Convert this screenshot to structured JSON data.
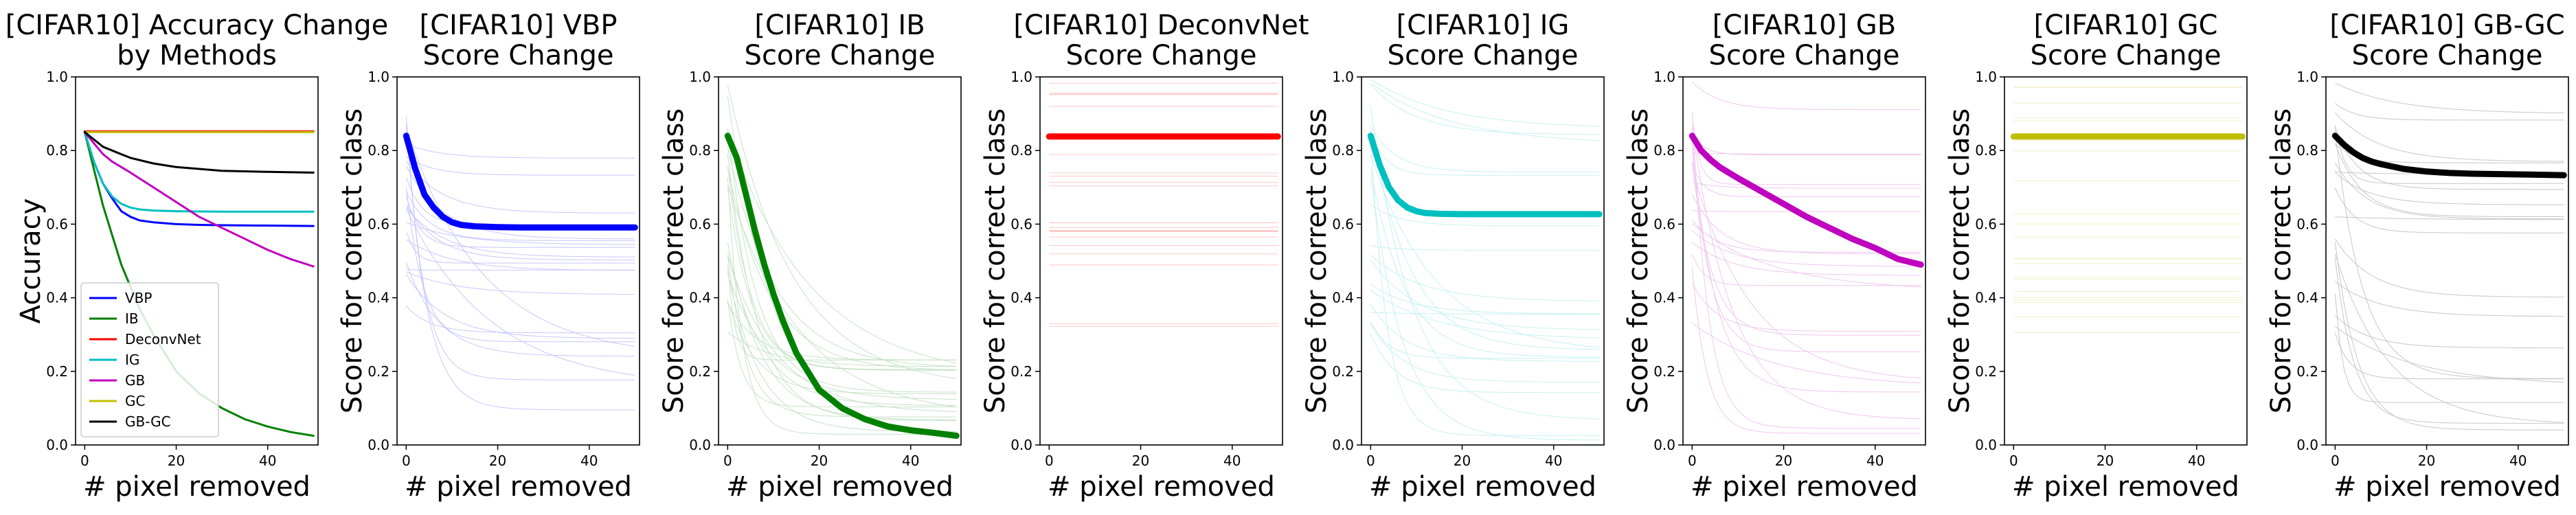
{
  "figure": {
    "background": "#ffffff"
  },
  "chart_data": [
    {
      "type": "line",
      "title": "[CIFAR10] Accuracy Change\nby Methods",
      "xlabel": "# pixel removed",
      "ylabel": "Accuracy",
      "xlim": [
        -2,
        51
      ],
      "ylim": [
        0,
        1.0
      ],
      "xticks": [
        0,
        20,
        40
      ],
      "yticks": [
        0.0,
        0.2,
        0.4,
        0.6,
        0.8,
        1.0
      ],
      "legend": {
        "placement": "lower-left"
      },
      "series": [
        {
          "name": "VBP",
          "color": "#0000ff",
          "x": [
            0,
            2,
            4,
            6,
            8,
            10,
            12,
            15,
            20,
            25,
            30,
            40,
            50
          ],
          "y": [
            0.85,
            0.77,
            0.71,
            0.67,
            0.635,
            0.62,
            0.61,
            0.605,
            0.6,
            0.598,
            0.597,
            0.596,
            0.595
          ]
        },
        {
          "name": "IB",
          "color": "#008000",
          "x": [
            0,
            2,
            4,
            6,
            8,
            10,
            12,
            15,
            20,
            25,
            30,
            35,
            40,
            45,
            50
          ],
          "y": [
            0.85,
            0.75,
            0.65,
            0.57,
            0.49,
            0.43,
            0.37,
            0.3,
            0.2,
            0.14,
            0.1,
            0.07,
            0.05,
            0.035,
            0.025
          ]
        },
        {
          "name": "DeconvNet",
          "color": "#ff0000",
          "x": [
            0,
            50
          ],
          "y": [
            0.852,
            0.852
          ]
        },
        {
          "name": "IG",
          "color": "#00bfbf",
          "x": [
            0,
            2,
            4,
            6,
            8,
            10,
            12,
            15,
            20,
            30,
            40,
            50
          ],
          "y": [
            0.85,
            0.77,
            0.71,
            0.675,
            0.655,
            0.645,
            0.64,
            0.637,
            0.635,
            0.634,
            0.634,
            0.634
          ]
        },
        {
          "name": "GB",
          "color": "#bf00bf",
          "x": [
            0,
            2,
            4,
            6,
            8,
            10,
            15,
            20,
            25,
            30,
            35,
            40,
            45,
            50
          ],
          "y": [
            0.85,
            0.82,
            0.79,
            0.77,
            0.755,
            0.74,
            0.7,
            0.66,
            0.62,
            0.59,
            0.56,
            0.53,
            0.505,
            0.485
          ]
        },
        {
          "name": "GC",
          "color": "#bfbf00",
          "x": [
            0,
            50
          ],
          "y": [
            0.85,
            0.85
          ]
        },
        {
          "name": "GB-GC",
          "color": "#000000",
          "x": [
            0,
            2,
            4,
            6,
            8,
            10,
            15,
            20,
            25,
            30,
            40,
            50
          ],
          "y": [
            0.85,
            0.83,
            0.81,
            0.8,
            0.79,
            0.78,
            0.765,
            0.755,
            0.75,
            0.745,
            0.742,
            0.74
          ]
        }
      ]
    },
    {
      "type": "line",
      "title": "[CIFAR10] VBP\nScore Change",
      "xlabel": "# pixel removed",
      "ylabel": "Score for correct class",
      "xlim": [
        -2,
        51
      ],
      "ylim": [
        0,
        1.0
      ],
      "xticks": [
        0,
        20,
        40
      ],
      "yticks": [
        0.0,
        0.2,
        0.4,
        0.6,
        0.8,
        1.0
      ],
      "color": "#0000ff",
      "series": [
        {
          "x": [
            0,
            2,
            4,
            6,
            8,
            10,
            12,
            15,
            20,
            25,
            30,
            40,
            50
          ],
          "y": [
            0.84,
            0.75,
            0.68,
            0.645,
            0.62,
            0.605,
            0.598,
            0.594,
            0.592,
            0.591,
            0.591,
            0.591,
            0.591
          ]
        }
      ]
    },
    {
      "type": "line",
      "title": "[CIFAR10] IB\nScore Change",
      "xlabel": "# pixel removed",
      "ylabel": "Score for correct class",
      "xlim": [
        -2,
        51
      ],
      "ylim": [
        0,
        1.0
      ],
      "xticks": [
        0,
        20,
        40
      ],
      "yticks": [
        0.0,
        0.2,
        0.4,
        0.6,
        0.8,
        1.0
      ],
      "color": "#008000",
      "series": [
        {
          "x": [
            0,
            2,
            4,
            6,
            8,
            10,
            12,
            15,
            20,
            25,
            30,
            35,
            40,
            45,
            50
          ],
          "y": [
            0.84,
            0.78,
            0.68,
            0.58,
            0.49,
            0.41,
            0.34,
            0.25,
            0.15,
            0.1,
            0.07,
            0.05,
            0.04,
            0.033,
            0.025
          ]
        }
      ]
    },
    {
      "type": "line",
      "title": "[CIFAR10] DeconvNet\nScore Change",
      "xlabel": "# pixel removed",
      "ylabel": "Score for correct class",
      "xlim": [
        -2,
        51
      ],
      "ylim": [
        0,
        1.0
      ],
      "xticks": [
        0,
        20,
        40
      ],
      "yticks": [
        0.0,
        0.2,
        0.4,
        0.6,
        0.8,
        1.0
      ],
      "color": "#ff0000",
      "series": [
        {
          "x": [
            0,
            50
          ],
          "y": [
            0.838,
            0.838
          ]
        }
      ]
    },
    {
      "type": "line",
      "title": "[CIFAR10] IG\nScore Change",
      "xlabel": "# pixel removed",
      "ylabel": "Score for correct class",
      "xlim": [
        -2,
        51
      ],
      "ylim": [
        0,
        1.0
      ],
      "xticks": [
        0,
        20,
        40
      ],
      "yticks": [
        0.0,
        0.2,
        0.4,
        0.6,
        0.8,
        1.0
      ],
      "color": "#00bfbf",
      "series": [
        {
          "x": [
            0,
            2,
            4,
            6,
            8,
            10,
            12,
            15,
            20,
            30,
            40,
            50
          ],
          "y": [
            0.84,
            0.76,
            0.7,
            0.665,
            0.645,
            0.635,
            0.63,
            0.628,
            0.627,
            0.627,
            0.627,
            0.627
          ]
        }
      ]
    },
    {
      "type": "line",
      "title": "[CIFAR10] GB\nScore Change",
      "xlabel": "# pixel removed",
      "ylabel": "Score for correct class",
      "xlim": [
        -2,
        51
      ],
      "ylim": [
        0,
        1.0
      ],
      "xticks": [
        0,
        20,
        40
      ],
      "yticks": [
        0.0,
        0.2,
        0.4,
        0.6,
        0.8,
        1.0
      ],
      "color": "#bf00bf",
      "series": [
        {
          "x": [
            0,
            2,
            4,
            6,
            8,
            10,
            15,
            20,
            25,
            30,
            35,
            40,
            45,
            50
          ],
          "y": [
            0.84,
            0.8,
            0.775,
            0.755,
            0.74,
            0.725,
            0.69,
            0.655,
            0.62,
            0.59,
            0.56,
            0.535,
            0.505,
            0.49
          ]
        }
      ]
    },
    {
      "type": "line",
      "title": "[CIFAR10] GC\nScore Change",
      "xlabel": "# pixel removed",
      "ylabel": "Score for correct class",
      "xlim": [
        -2,
        51
      ],
      "ylim": [
        0,
        1.0
      ],
      "xticks": [
        0,
        20,
        40
      ],
      "yticks": [
        0.0,
        0.2,
        0.4,
        0.6,
        0.8,
        1.0
      ],
      "color": "#bfbf00",
      "series": [
        {
          "x": [
            0,
            50
          ],
          "y": [
            0.838,
            0.838
          ]
        }
      ]
    },
    {
      "type": "line",
      "title": "[CIFAR10] GB-GC\nScore Change",
      "xlabel": "# pixel removed",
      "ylabel": "Score for correct class",
      "xlim": [
        -2,
        51
      ],
      "ylim": [
        0,
        1.0
      ],
      "xticks": [
        0,
        20,
        40
      ],
      "yticks": [
        0.0,
        0.2,
        0.4,
        0.6,
        0.8,
        1.0
      ],
      "color": "#000000",
      "series": [
        {
          "x": [
            0,
            2,
            4,
            6,
            8,
            10,
            15,
            20,
            25,
            30,
            40,
            50
          ],
          "y": [
            0.84,
            0.815,
            0.795,
            0.78,
            0.77,
            0.763,
            0.75,
            0.743,
            0.739,
            0.737,
            0.735,
            0.733
          ]
        }
      ]
    }
  ]
}
